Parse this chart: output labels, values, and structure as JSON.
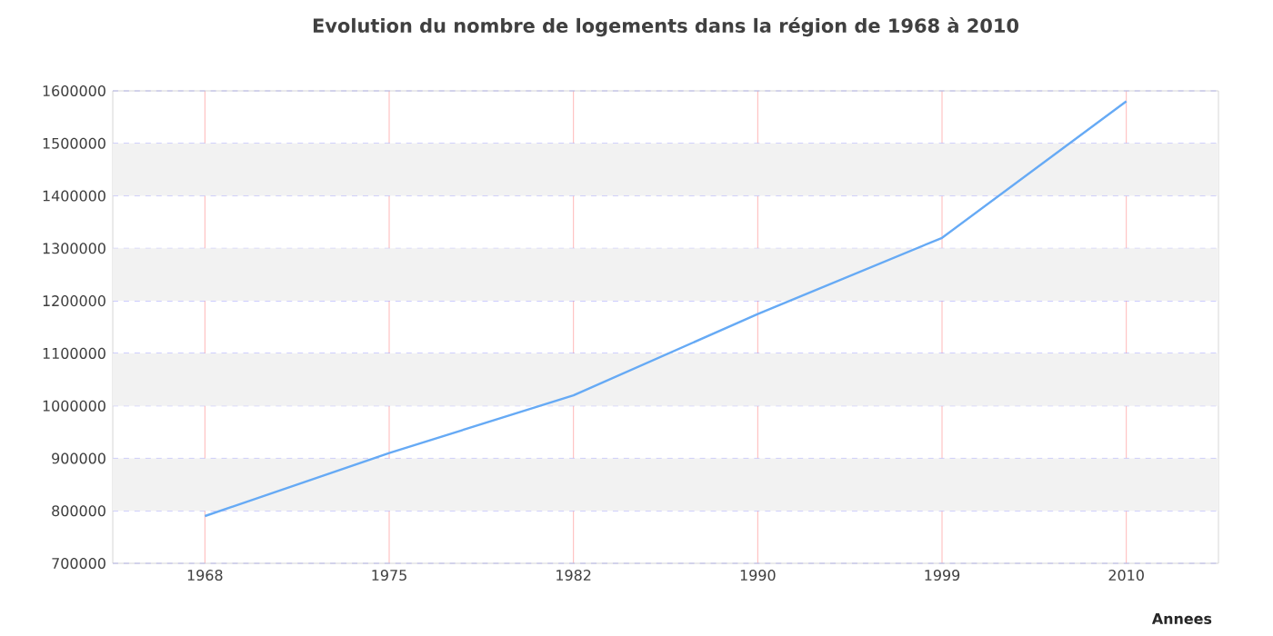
{
  "chart_data": {
    "type": "line",
    "title": "Evolution du nombre de logements dans la région de 1968 à 2010",
    "xlabel": "Annees",
    "categories": [
      "1968",
      "1975",
      "1982",
      "1990",
      "1999",
      "2010"
    ],
    "series": [
      {
        "color": "#66aaf5",
        "values": [
          790000,
          910000,
          1020000,
          1175000,
          1320000,
          1580000
        ]
      }
    ],
    "ylim": [
      700000,
      1600000
    ],
    "yticks": [
      700000,
      800000,
      900000,
      1000000,
      1100000,
      1200000,
      1300000,
      1400000,
      1500000,
      1600000
    ],
    "grid": true,
    "legend": false,
    "marker": "none",
    "line_style": "solid",
    "bands": [
      {
        "axis": "y",
        "from": 800000,
        "to": 900000,
        "color": "#f2f2f2"
      },
      {
        "axis": "y",
        "from": 1000000,
        "to": 1100000,
        "color": "#f2f2f2"
      },
      {
        "axis": "y",
        "from": 1200000,
        "to": 1300000,
        "color": "#f2f2f2"
      },
      {
        "axis": "y",
        "from": 1400000,
        "to": 1500000,
        "color": "#f2f2f2"
      }
    ]
  }
}
